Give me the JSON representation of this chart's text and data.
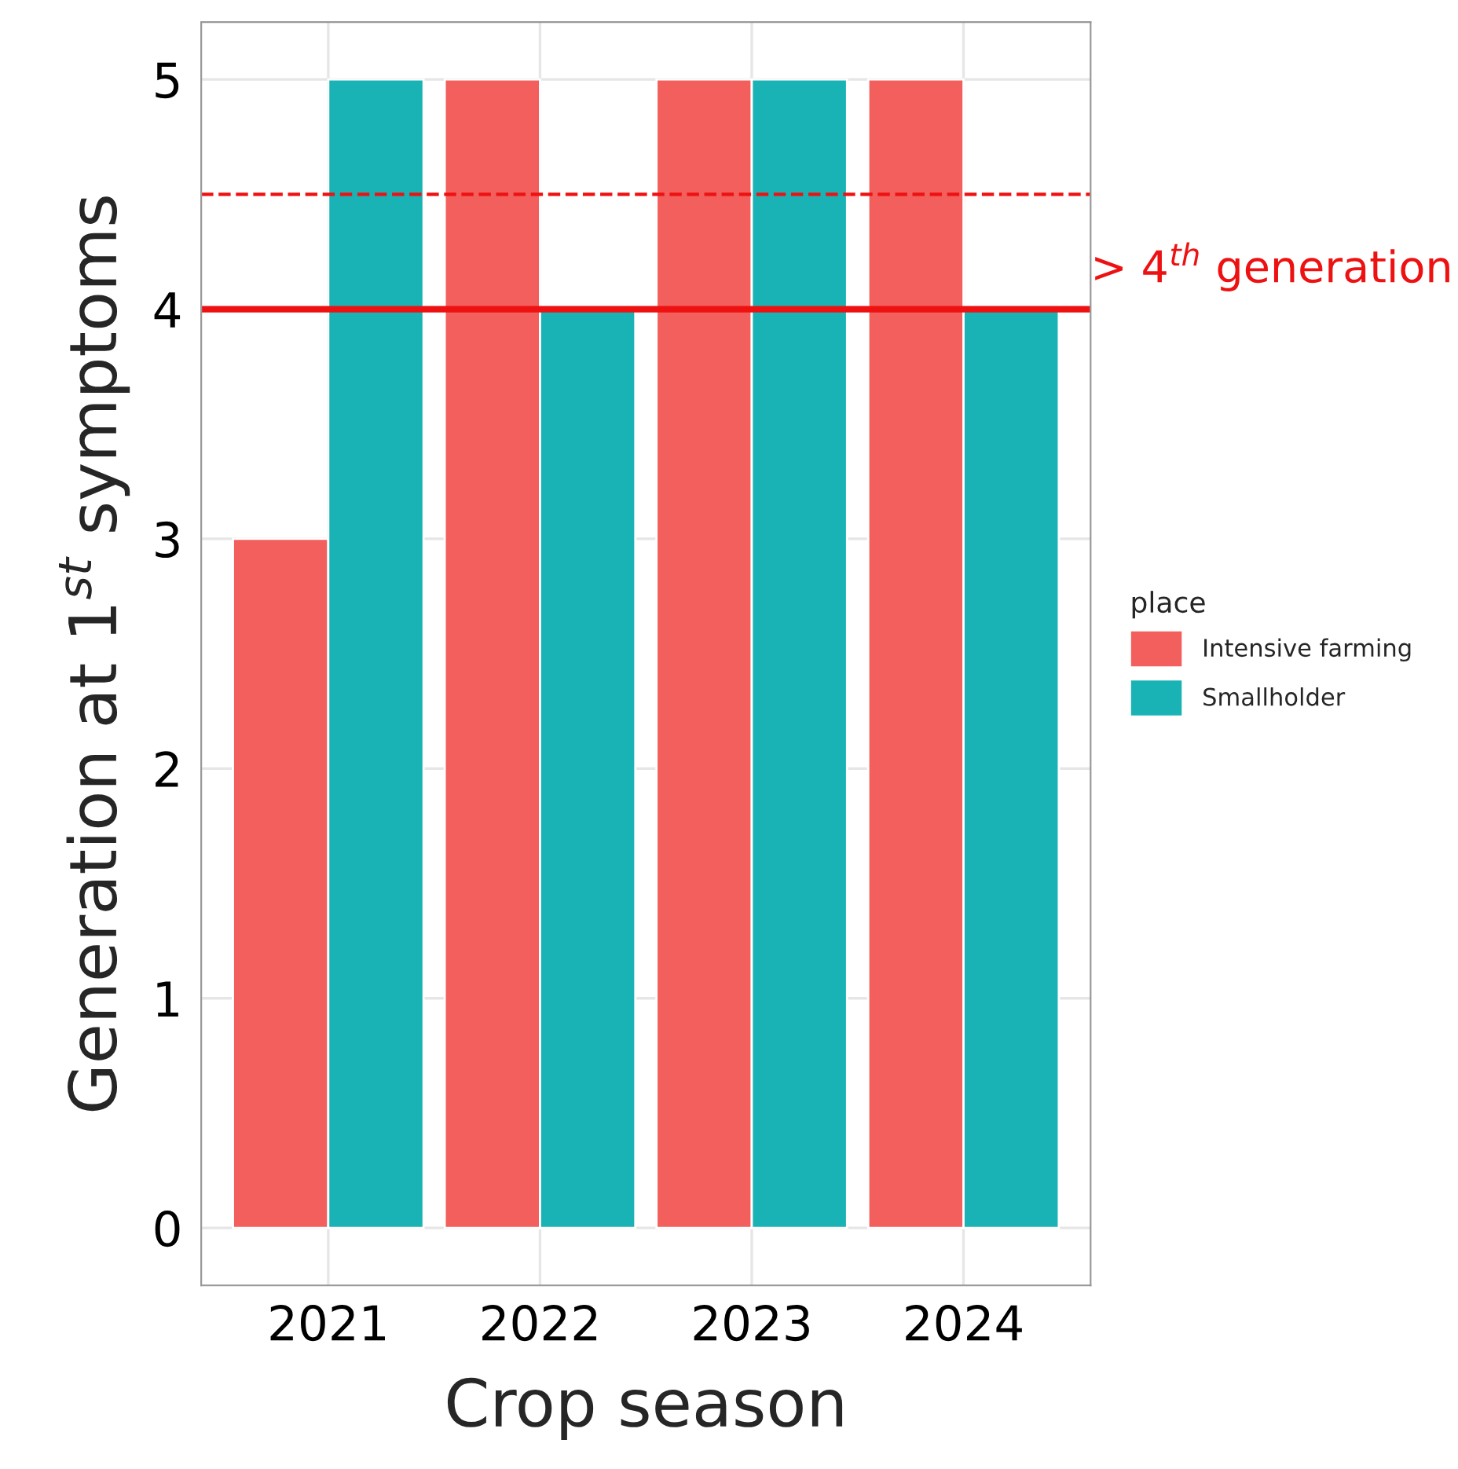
{
  "chart_data": {
    "type": "bar",
    "xlabel": "Crop season",
    "ylabel": "Generation at 1$^{st}$ symptoms",
    "legend_title": "place",
    "categories": [
      "2021",
      "2022",
      "2023",
      "2024"
    ],
    "series": [
      {
        "name": "Intensive farming",
        "color": "#f25f5c",
        "values": [
          3,
          5,
          5,
          5
        ]
      },
      {
        "name": "Smallholder",
        "color": "#1ab3b5",
        "values": [
          5,
          4,
          5,
          4
        ]
      }
    ],
    "ylim": [
      -0.25,
      5.25
    ],
    "yticks": [
      0,
      1,
      2,
      3,
      4,
      5
    ],
    "ref_lines": [
      {
        "axis": "y",
        "value": 4,
        "label": "> 4$^{th}$ generation",
        "color": "#ee1111",
        "line_style": "solid"
      },
      {
        "axis": "y",
        "value": 4.5,
        "color": "#ee1111",
        "line_style": "dashed"
      }
    ],
    "grid": true,
    "legend": "right"
  }
}
